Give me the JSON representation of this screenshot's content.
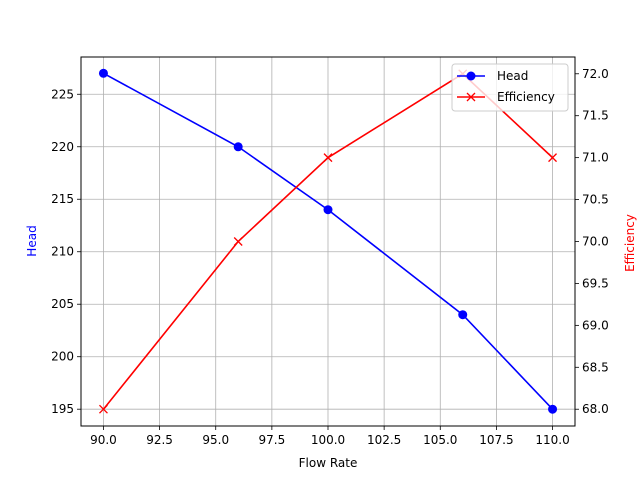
{
  "chart_data": {
    "type": "line",
    "title": "",
    "xlabel": "Flow Rate",
    "ylabel": "Head",
    "ylabel_right": "Efficiency",
    "x": [
      90,
      96,
      100,
      106,
      110
    ],
    "xlim": [
      89.0,
      111.0
    ],
    "ylim": [
      193.4,
      228.55
    ],
    "ylim_right": [
      67.8,
      72.2
    ],
    "x_ticks": [
      "90.0",
      "92.5",
      "95.0",
      "97.5",
      "100.0",
      "102.5",
      "105.0",
      "107.5",
      "110.0"
    ],
    "y_ticks": [
      "195",
      "200",
      "205",
      "210",
      "215",
      "220",
      "225"
    ],
    "y_ticks_right": [
      "68.0",
      "68.5",
      "69.0",
      "69.5",
      "70.0",
      "70.5",
      "71.0",
      "71.5",
      "72.0"
    ],
    "grid": true,
    "legend_position": "upper right",
    "series": [
      {
        "name": "Head",
        "axis": "left",
        "color": "#0000ff",
        "marker": "o",
        "values": [
          227,
          220,
          214,
          204,
          195
        ]
      },
      {
        "name": "Efficiency",
        "axis": "right",
        "color": "#ff0000",
        "marker": "x",
        "values": [
          68,
          70,
          71,
          72,
          71
        ]
      }
    ]
  }
}
